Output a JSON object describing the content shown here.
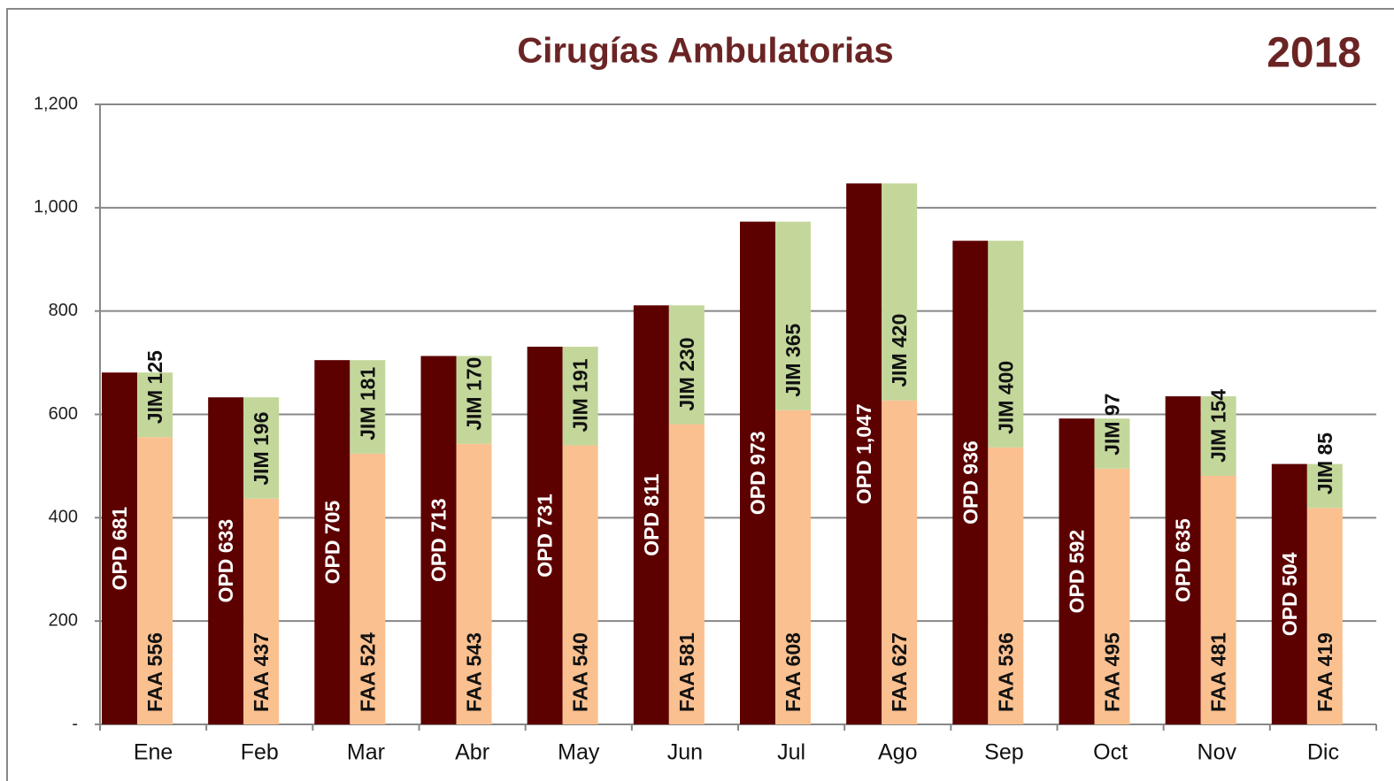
{
  "chart_data": {
    "type": "bar",
    "title": "Cirugías Ambulatorias",
    "annotation": "2018",
    "categories": [
      "Ene",
      "Feb",
      "Mar",
      "Abr",
      "May",
      "Jun",
      "Jul",
      "Ago",
      "Sep",
      "Oct",
      "Nov",
      "Dic"
    ],
    "series": [
      {
        "name": "OPD",
        "color": "#5c0000",
        "stack": "a",
        "values": [
          681,
          633,
          705,
          713,
          731,
          811,
          973,
          1047,
          936,
          592,
          635,
          504
        ],
        "value_labels": [
          "OPD 681",
          "OPD 633",
          "OPD 705",
          "OPD 713",
          "OPD 731",
          "OPD 811",
          "OPD 973",
          "OPD 1,047",
          "OPD 936",
          "OPD 592",
          "OPD 635",
          "OPD 504"
        ]
      },
      {
        "name": "FAA",
        "color": "#fac090",
        "stack": "b",
        "values": [
          556,
          437,
          524,
          543,
          540,
          581,
          608,
          627,
          536,
          495,
          481,
          419
        ],
        "value_labels": [
          "FAA 556",
          "FAA 437",
          "FAA 524",
          "FAA 543",
          "FAA 540",
          "FAA 581",
          "FAA 608",
          "FAA 627",
          "FAA 536",
          "FAA 495",
          "FAA 481",
          "FAA 419"
        ]
      },
      {
        "name": "JIM",
        "color": "#c4d79b",
        "stack": "b",
        "values": [
          125,
          196,
          181,
          170,
          191,
          230,
          365,
          420,
          400,
          97,
          154,
          85
        ],
        "value_labels": [
          "JIM 125",
          "JIM 196",
          "JIM 181",
          "JIM 170",
          "JIM 191",
          "JIM 230",
          "JIM 365",
          "JIM 420",
          "JIM 400",
          "JIM 97",
          "JIM 154",
          "JIM 85"
        ]
      }
    ],
    "ylim": [
      0,
      1200
    ],
    "yticks": [
      {
        "value": 0,
        "label": "-"
      },
      200,
      400,
      600,
      800,
      {
        "value": 1000,
        "label": "1,000"
      },
      {
        "value": 1200,
        "label": "1,200"
      }
    ],
    "grid": true
  }
}
